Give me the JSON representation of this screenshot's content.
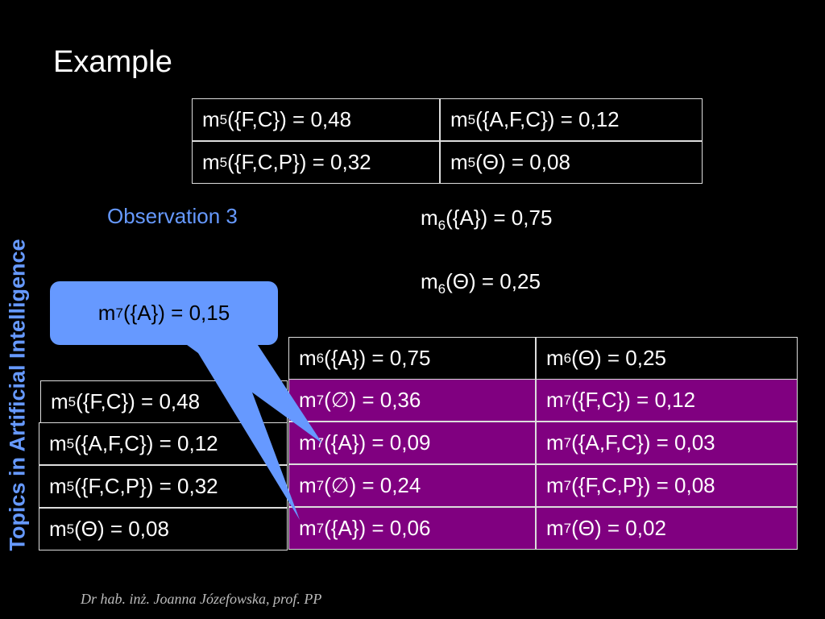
{
  "title": "Example",
  "side_title": "Topics in Artificial Intelligence",
  "footer": "Dr hab. inż. Joanna Józefowska, prof. PP",
  "top_table": {
    "rows": [
      [
        [
          "m",
          "5",
          "({F,C}) = 0,48"
        ],
        [
          "m",
          "5",
          "({A,F,C}) = 0,12"
        ]
      ],
      [
        [
          "m",
          "5",
          "({F,C,P}) = 0,32"
        ],
        [
          "m",
          "5",
          "(Θ) = 0,08"
        ]
      ]
    ]
  },
  "observation_label": "Observation 3",
  "m6_lines": [
    [
      "m",
      "6",
      "({A}) = 0,75"
    ],
    [
      "m",
      "6",
      "(Θ) = 0,25"
    ]
  ],
  "callout": [
    "m",
    "7",
    "({A}) = 0,15"
  ],
  "left_table": {
    "rows": [
      [
        "m",
        "5",
        "({F,C}) = 0,48"
      ],
      [
        "m",
        "5",
        "({A,F,C}) = 0,12"
      ],
      [
        "m",
        "5",
        "({F,C,P}) = 0,32"
      ],
      [
        "m",
        "5",
        "(Θ) = 0,08"
      ]
    ]
  },
  "right_table": {
    "rows": [
      [
        [
          "m",
          "6",
          "({A}) = 0,75"
        ],
        [
          "m",
          "6",
          "(Θ) = 0,25"
        ]
      ],
      [
        [
          "m",
          "7",
          "(∅) = 0,36"
        ],
        [
          "m",
          "7",
          "({F,C}) = 0,12"
        ]
      ],
      [
        [
          "m",
          "7",
          "({A}) = 0,09"
        ],
        [
          "m",
          "7",
          "({A,F,C}) = 0,03"
        ]
      ],
      [
        [
          "m",
          "7",
          "(∅) = 0,24"
        ],
        [
          "m",
          "7",
          "({F,C,P}) = 0,08"
        ]
      ],
      [
        [
          "m",
          "7",
          "({A}) = 0,06"
        ],
        [
          "m",
          "7",
          "(Θ) = 0,02"
        ]
      ]
    ]
  }
}
